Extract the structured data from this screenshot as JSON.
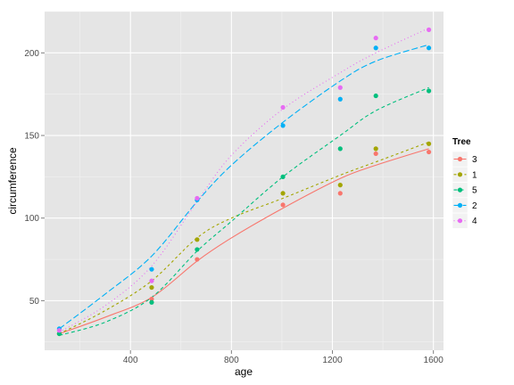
{
  "chart_data": {
    "type": "scatter",
    "xlabel": "age",
    "ylabel": "circumference",
    "xlim": [
      60,
      1640
    ],
    "ylim": [
      20,
      225
    ],
    "x_ticks": [
      400,
      800,
      1200,
      1600
    ],
    "y_ticks": [
      50,
      100,
      150,
      200
    ],
    "x_minor_ticks": [
      200,
      600,
      1000,
      1400
    ],
    "y_minor_ticks": [
      25,
      75,
      125,
      175,
      225
    ],
    "x_tick_labels": [
      "400",
      "800",
      "1200",
      "1600"
    ],
    "y_tick_labels": [
      "50",
      "100",
      "150",
      "200"
    ],
    "grid": true,
    "panel_background": "#e5e5e5",
    "grid_color": "#ffffff",
    "legend": {
      "title": "Tree",
      "placement": "right",
      "entries": [
        "3",
        "1",
        "5",
        "2",
        "4"
      ]
    },
    "smooth_lines": true,
    "x": [
      118,
      484,
      664,
      1004,
      1231,
      1372,
      1582
    ],
    "series": [
      {
        "name": "3",
        "color": "#F8766D",
        "dash": "solid",
        "values": [
          30,
          51,
          75,
          108,
          115,
          139,
          140
        ]
      },
      {
        "name": "1",
        "color": "#A3A500",
        "dash": "3,3",
        "values": [
          30,
          58,
          87,
          115,
          120,
          142,
          145
        ]
      },
      {
        "name": "5",
        "color": "#00BF7D",
        "dash": "4,3",
        "values": [
          30,
          49,
          81,
          125,
          142,
          174,
          177
        ]
      },
      {
        "name": "2",
        "color": "#00B0F6",
        "dash": "7,3",
        "values": [
          33,
          69,
          111,
          156,
          172,
          203,
          203
        ]
      },
      {
        "name": "4",
        "color": "#E76BF3",
        "dash": "1,3",
        "values": [
          32,
          62,
          112,
          167,
          179,
          209,
          214
        ]
      }
    ],
    "smoothed": {
      "3": [
        [
          118,
          30
        ],
        [
          300,
          40
        ],
        [
          484,
          52
        ],
        [
          664,
          74
        ],
        [
          800,
          88
        ],
        [
          1004,
          106
        ],
        [
          1231,
          124
        ],
        [
          1372,
          132
        ],
        [
          1582,
          142
        ]
      ],
      "1": [
        [
          118,
          30
        ],
        [
          300,
          44
        ],
        [
          484,
          62
        ],
        [
          664,
          88
        ],
        [
          800,
          100
        ],
        [
          1004,
          112
        ],
        [
          1231,
          126
        ],
        [
          1372,
          134
        ],
        [
          1582,
          146
        ]
      ],
      "5": [
        [
          118,
          29
        ],
        [
          300,
          37
        ],
        [
          484,
          52
        ],
        [
          664,
          80
        ],
        [
          800,
          98
        ],
        [
          1004,
          125
        ],
        [
          1231,
          150
        ],
        [
          1372,
          165
        ],
        [
          1582,
          179
        ]
      ],
      "2": [
        [
          118,
          33
        ],
        [
          300,
          54
        ],
        [
          484,
          77
        ],
        [
          664,
          110
        ],
        [
          800,
          132
        ],
        [
          1004,
          158
        ],
        [
          1231,
          183
        ],
        [
          1372,
          195
        ],
        [
          1582,
          205
        ]
      ],
      "4": [
        [
          118,
          31
        ],
        [
          300,
          47
        ],
        [
          484,
          71
        ],
        [
          664,
          110
        ],
        [
          800,
          138
        ],
        [
          1004,
          166
        ],
        [
          1231,
          188
        ],
        [
          1372,
          200
        ],
        [
          1582,
          215
        ]
      ]
    }
  }
}
